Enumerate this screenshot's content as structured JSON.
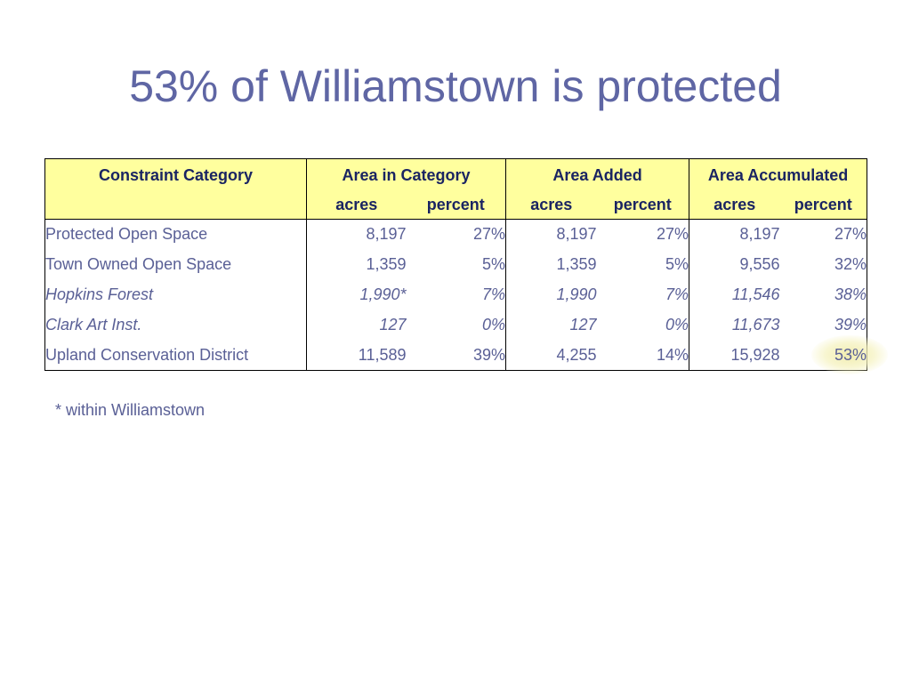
{
  "title": "53% of Williamstown is protected",
  "table": {
    "headers": {
      "category": "Constraint Category",
      "groups": [
        "Area in Category",
        "Area Added",
        "Area Accumulated"
      ],
      "sub": [
        "acres",
        "percent",
        "acres",
        "percent",
        "acres",
        "percent"
      ]
    },
    "rows": [
      {
        "category": "Protected Open Space",
        "cells": [
          "8,197",
          "27%",
          "8,197",
          "27%",
          "8,197",
          "27%"
        ],
        "italic": false
      },
      {
        "category": "Town Owned Open Space",
        "cells": [
          "1,359",
          "5%",
          "1,359",
          "5%",
          "9,556",
          "32%"
        ],
        "italic": false
      },
      {
        "category": "Hopkins Forest",
        "cells": [
          "1,990*",
          "7%",
          "1,990",
          "7%",
          "11,546",
          "38%"
        ],
        "italic": true
      },
      {
        "category": "Clark Art Inst.",
        "cells": [
          "127",
          "0%",
          "127",
          "0%",
          "11,673",
          "39%"
        ],
        "italic": true
      },
      {
        "category": "Upland Conservation District",
        "cells": [
          "11,589",
          "39%",
          "4,255",
          "14%",
          "15,928",
          "53%"
        ],
        "italic": false
      }
    ]
  },
  "footnote": "* within Williamstown",
  "colors": {
    "title": "#5f66a4",
    "header_bg": "#ffff9e",
    "header_text": "#1a2462",
    "body_text": "#5a6096",
    "highlight": "#f0ecaa"
  }
}
